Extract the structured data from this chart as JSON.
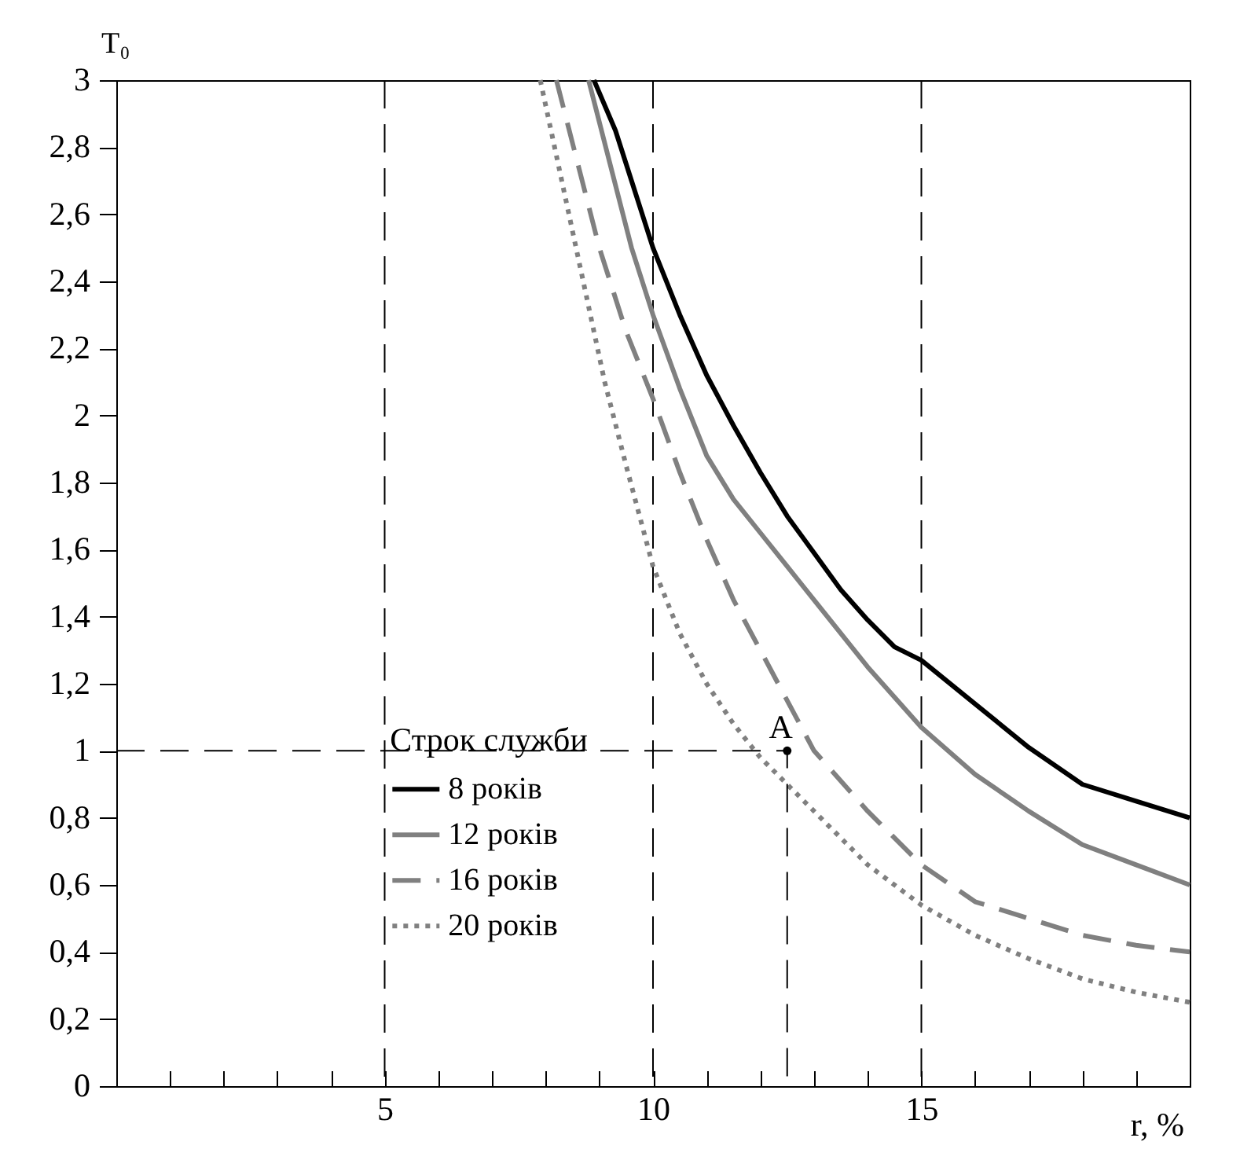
{
  "chart_data": {
    "type": "line",
    "xlabel": "r, %",
    "ylabel": "T₀",
    "legend_title": "Строк служби",
    "legend": "bottom left",
    "xlim": [
      0,
      20
    ],
    "ylim": [
      0,
      3
    ],
    "xticks": [
      {
        "value": 1,
        "label": null
      },
      {
        "value": 2,
        "label": null
      },
      {
        "value": 3,
        "label": null
      },
      {
        "value": 4,
        "label": null
      },
      5,
      {
        "value": 6,
        "label": null
      },
      {
        "value": 7,
        "label": null
      },
      {
        "value": 8,
        "label": null
      },
      {
        "value": 9,
        "label": null
      },
      10,
      {
        "value": 11,
        "label": null
      },
      {
        "value": 12,
        "label": null
      },
      {
        "value": 13,
        "label": null
      },
      {
        "value": 14,
        "label": null
      },
      15,
      {
        "value": 16,
        "label": null
      },
      {
        "value": 17,
        "label": null
      },
      {
        "value": 18,
        "label": null
      },
      {
        "value": 19,
        "label": null
      }
    ],
    "yticks": [
      0,
      {
        "value": 0.2,
        "label": "0,2"
      },
      {
        "value": 0.4,
        "label": "0,4"
      },
      {
        "value": 0.6,
        "label": "0,6"
      },
      {
        "value": 0.8,
        "label": "0,8"
      },
      1,
      {
        "value": 1.2,
        "label": "1,2"
      },
      {
        "value": 1.4,
        "label": "1,4"
      },
      {
        "value": 1.6,
        "label": "1,6"
      },
      {
        "value": 1.8,
        "label": "1,8"
      },
      2,
      {
        "value": 2.2,
        "label": "2,2"
      },
      {
        "value": 2.4,
        "label": "2,4"
      },
      {
        "value": 2.6,
        "label": "2,6"
      },
      {
        "value": 2.8,
        "label": "2,8"
      },
      3
    ],
    "ref_lines": [
      {
        "axis": "x",
        "value": 5,
        "line_style": "dashed",
        "color": "#000000"
      },
      {
        "axis": "x",
        "value": 10,
        "line_style": "dashed",
        "color": "#000000"
      },
      {
        "axis": "x",
        "value": 15,
        "line_style": "dashed",
        "color": "#000000"
      }
    ],
    "annotations": [
      {
        "text": "A",
        "x": 12.5,
        "y": 1
      }
    ],
    "series": [
      {
        "name": "8 років",
        "color": "#000000",
        "line_style": "solid",
        "x": [
          8.9,
          9.3,
          9.6,
          10,
          10.5,
          11,
          11.5,
          12,
          12.5,
          13,
          13.5,
          14,
          14.5,
          15,
          16,
          17,
          18,
          19,
          20
        ],
        "values": [
          3.0,
          2.85,
          2.7,
          2.5,
          2.3,
          2.12,
          1.97,
          1.83,
          1.7,
          1.59,
          1.48,
          1.39,
          1.31,
          1.27,
          1.14,
          1.01,
          0.9,
          0.85,
          0.8
        ]
      },
      {
        "name": "12 років",
        "color": "#808080",
        "line_style": "solid",
        "x": [
          8.8,
          9.2,
          9.6,
          10,
          10.5,
          11,
          11.5,
          12,
          12.5,
          13,
          14,
          15,
          16,
          17,
          18,
          19,
          20
        ],
        "values": [
          3.0,
          2.75,
          2.5,
          2.3,
          2.08,
          1.88,
          1.75,
          1.65,
          1.55,
          1.45,
          1.25,
          1.07,
          0.93,
          0.82,
          0.72,
          0.66,
          0.6
        ]
      },
      {
        "name": "16 років",
        "color": "#808080",
        "line_style": "dashed",
        "x": [
          8.2,
          8.6,
          9,
          9.5,
          10,
          10.5,
          11,
          11.5,
          12,
          12.5,
          13,
          14,
          15,
          16,
          17,
          18,
          19,
          20
        ],
        "values": [
          3.0,
          2.75,
          2.5,
          2.25,
          2.05,
          1.83,
          1.63,
          1.45,
          1.3,
          1.15,
          1.0,
          0.82,
          0.66,
          0.55,
          0.5,
          0.45,
          0.42,
          0.4
        ]
      },
      {
        "name": "20 років",
        "color": "#808080",
        "line_style": "dotted",
        "x": [
          7.9,
          8.3,
          8.7,
          9.1,
          9.5,
          10,
          10.5,
          11,
          11.5,
          12,
          12.5,
          13,
          14,
          15,
          16,
          17,
          18,
          19,
          20
        ],
        "values": [
          3.0,
          2.7,
          2.4,
          2.1,
          1.85,
          1.55,
          1.35,
          1.2,
          1.08,
          0.98,
          0.9,
          0.82,
          0.66,
          0.54,
          0.45,
          0.38,
          0.32,
          0.28,
          0.25
        ]
      },
      {
        "type": "line",
        "color": "#000000",
        "line_style": "dashed",
        "x": [
          0,
          12.5,
          12.5
        ],
        "values": [
          1,
          1,
          0
        ]
      },
      {
        "type": "scatter",
        "color": "#000000",
        "marker": "circle",
        "x": [
          12.5
        ],
        "values": [
          1
        ]
      }
    ]
  }
}
